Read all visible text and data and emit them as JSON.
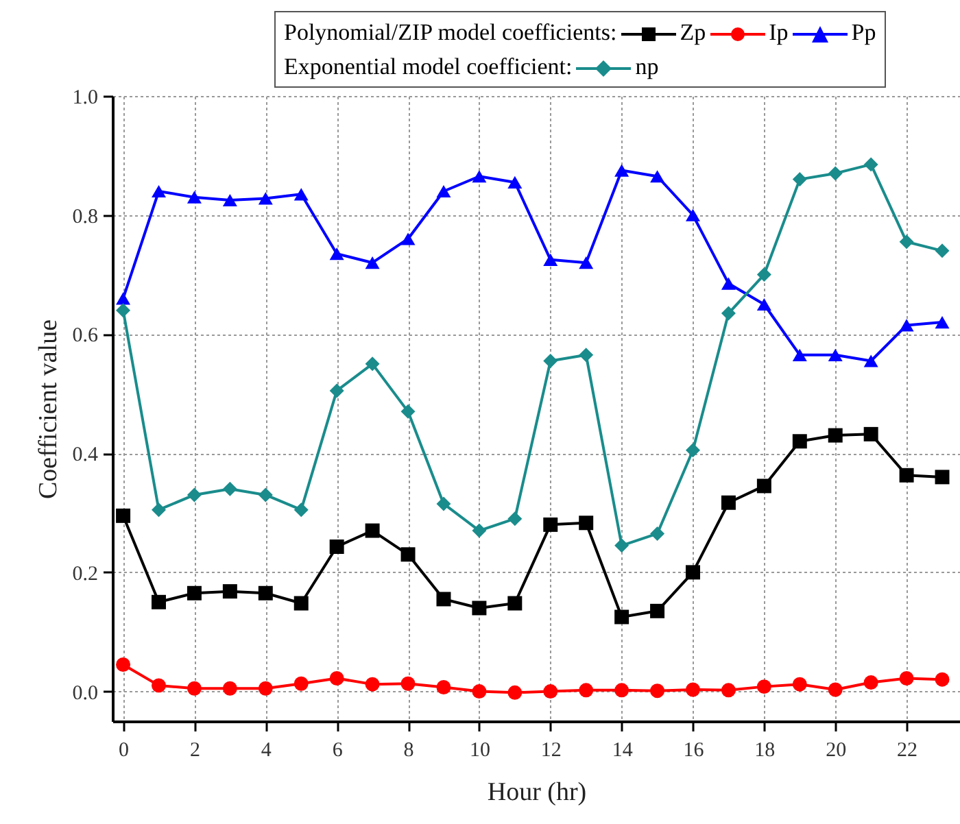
{
  "chart_data": {
    "type": "line",
    "xlabel": "Hour (hr)",
    "ylabel": "Coefficient value",
    "x": [
      0,
      1,
      2,
      3,
      4,
      5,
      6,
      7,
      8,
      9,
      10,
      11,
      12,
      13,
      14,
      15,
      16,
      17,
      18,
      19,
      20,
      21,
      22,
      23
    ],
    "series": [
      {
        "name": "Zp",
        "color": "#000000",
        "marker": "square",
        "values": [
          0.295,
          0.15,
          0.165,
          0.168,
          0.165,
          0.148,
          0.243,
          0.27,
          0.23,
          0.155,
          0.14,
          0.148,
          0.28,
          0.283,
          0.125,
          0.135,
          0.2,
          0.317,
          0.345,
          0.42,
          0.43,
          0.432,
          0.363,
          0.36
        ]
      },
      {
        "name": "Ip",
        "color": "#ff0000",
        "marker": "circle",
        "values": [
          0.045,
          0.01,
          0.005,
          0.005,
          0.005,
          0.013,
          0.022,
          0.012,
          0.013,
          0.007,
          0.0,
          -0.002,
          0.0,
          0.002,
          0.002,
          0.001,
          0.003,
          0.002,
          0.008,
          0.012,
          0.003,
          0.015,
          0.022,
          0.02
        ]
      },
      {
        "name": "Pp",
        "color": "#0000ff",
        "marker": "triangle",
        "values": [
          0.66,
          0.84,
          0.83,
          0.825,
          0.828,
          0.835,
          0.735,
          0.72,
          0.76,
          0.84,
          0.865,
          0.855,
          0.725,
          0.72,
          0.875,
          0.865,
          0.8,
          0.685,
          0.65,
          0.565,
          0.565,
          0.555,
          0.615,
          0.62
        ]
      },
      {
        "name": "np",
        "color": "#1a8c8c",
        "marker": "diamond",
        "values": [
          0.64,
          0.305,
          0.33,
          0.34,
          0.33,
          0.305,
          0.505,
          0.55,
          0.47,
          0.315,
          0.27,
          0.29,
          0.555,
          0.565,
          0.245,
          0.265,
          0.405,
          0.635,
          0.7,
          0.86,
          0.87,
          0.885,
          0.755,
          0.74
        ]
      }
    ],
    "annotations": [
      "Polynomial/ZIP model coefficients:",
      "Exponential model coefficient:"
    ],
    "xlim": [
      -0.3,
      23.5
    ],
    "xticks": [
      0,
      2,
      4,
      6,
      8,
      10,
      12,
      14,
      16,
      18,
      20,
      22
    ],
    "ylim": [
      -0.05,
      1.0
    ],
    "yticks": [
      {
        "value": 0,
        "label": "0.0"
      },
      {
        "value": 0.2,
        "label": "0.2"
      },
      {
        "value": 0.4,
        "label": "0.4"
      },
      {
        "value": 0.6,
        "label": "0.6"
      },
      {
        "value": 0.8,
        "label": "0.8"
      },
      {
        "value": 1.0,
        "label": "1.0"
      }
    ],
    "grid": true,
    "legend": "top",
    "line_style": "solid"
  }
}
